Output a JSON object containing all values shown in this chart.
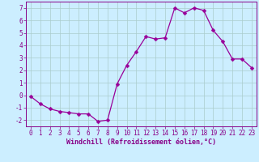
{
  "x": [
    0,
    1,
    2,
    3,
    4,
    5,
    6,
    7,
    8,
    9,
    10,
    11,
    12,
    13,
    14,
    15,
    16,
    17,
    18,
    19,
    20,
    21,
    22,
    23
  ],
  "y": [
    -0.1,
    -0.7,
    -1.1,
    -1.3,
    -1.4,
    -1.5,
    -1.5,
    -2.1,
    -2.0,
    0.9,
    2.4,
    3.5,
    4.7,
    4.5,
    4.6,
    7.0,
    6.6,
    7.0,
    6.8,
    5.2,
    4.3,
    2.9,
    2.9,
    2.2
  ],
  "line_color": "#990099",
  "marker": "D",
  "marker_size": 2.5,
  "xlabel": "Windchill (Refroidissement éolien,°C)",
  "ylim": [
    -2.5,
    7.5
  ],
  "xlim": [
    -0.5,
    23.5
  ],
  "yticks": [
    -2,
    -1,
    0,
    1,
    2,
    3,
    4,
    5,
    6,
    7
  ],
  "xticks": [
    0,
    1,
    2,
    3,
    4,
    5,
    6,
    7,
    8,
    9,
    10,
    11,
    12,
    13,
    14,
    15,
    16,
    17,
    18,
    19,
    20,
    21,
    22,
    23
  ],
  "bg_color": "#cceeff",
  "grid_color": "#aacccc",
  "text_color": "#880088",
  "tick_fontsize": 5.5,
  "xlabel_fontsize": 6.0
}
